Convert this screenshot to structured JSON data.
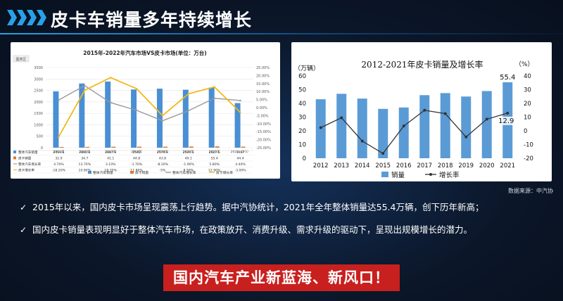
{
  "header": {
    "title": "皮卡车销量多年持续增长"
  },
  "chart_data": [
    {
      "type": "bar",
      "title": "2015年-2022年汽车市场VS皮卡市场(单位：万台)",
      "tag": "图表区",
      "categories": [
        "2015年",
        "2016年",
        "2017年",
        "2018年",
        "2019年",
        "2020年",
        "2021年",
        "2022（1-5）"
      ],
      "ylim_left": [
        0,
        3500
      ],
      "yticks_left": [
        "0",
        "500",
        "1000",
        "1500",
        "2000",
        "2500",
        "3000",
        "3500"
      ],
      "ylim_right": [
        -25,
        25
      ],
      "yticks_right": [
        "25.00%",
        "20.00%",
        "15.00%",
        "10.00%",
        "5.00%",
        "0.00%",
        "-5.00%",
        "-10.00%",
        "-15.00%",
        "-20.00%",
        "-25.00%"
      ],
      "series": [
        {
          "name": "整体汽车销量",
          "type": "bar",
          "axis": "left",
          "color": "#4a8fd4",
          "values": [
            2459.8,
            2802.8,
            2887.9,
            2542,
            2576.9,
            2531.1,
            2627.5,
            1947
          ],
          "labels": [
            "2459.8",
            "2802.8",
            "2887.9",
            "2542",
            "2576.9",
            "2531.1",
            "2627.5",
            "1947"
          ]
        },
        {
          "name": "皮卡销量",
          "type": "bar",
          "axis": "left",
          "color": "#e2762c",
          "values": [
            32.9,
            34.7,
            41.1,
            44.8,
            43.8,
            49.1,
            55.4,
            44.4
          ],
          "labels": [
            "32.9",
            "34.7",
            "41.1",
            "44.8",
            "43.8",
            "49.1",
            "55.4",
            "44.4"
          ]
        },
        {
          "name": "整体汽车增长率",
          "type": "line",
          "axis": "right",
          "color": "#9a9a9a",
          "values": [
            4.7,
            13.7,
            3.1,
            -1.7,
            -8.2,
            -1.9,
            5.8,
            4.4
          ],
          "labels": [
            "4.70%",
            "13.70%",
            "3.10%",
            "-1.70%",
            "-8.20%",
            "-1.90%",
            "5.80%",
            "4.40%"
          ]
        },
        {
          "name": "皮卡增长率",
          "type": "line",
          "axis": "right",
          "color": "#f2b81c",
          "values": [
            -18.2,
            10.8,
            18.7,
            11.8,
            -5,
            8.58,
            12.9,
            -3
          ],
          "labels": [
            "-18.20%",
            "10.80%",
            "18.70%",
            "11.80%",
            "-5%",
            "8.58%",
            "12.90%",
            "-3.00%"
          ]
        }
      ],
      "legend_position": "bottom"
    },
    {
      "type": "bar",
      "title": "2012-2021年皮卡销量及增长率",
      "ylabel_left": "（万辆）",
      "ylabel_right": "（%）",
      "categories": [
        "2012",
        "2013",
        "2014",
        "2015",
        "2016",
        "2017",
        "2018",
        "2019",
        "2020",
        "2021"
      ],
      "ylim_left": [
        0,
        60
      ],
      "yticks_left": [
        "0",
        "10",
        "20",
        "30",
        "40",
        "50",
        "60"
      ],
      "ylim_right": [
        -20,
        40
      ],
      "yticks_right": [
        "-20",
        "-10",
        "0",
        "10",
        "20",
        "30",
        "40"
      ],
      "series": [
        {
          "name": "销量",
          "type": "bar",
          "axis": "left",
          "color": "#5b9bd5",
          "values": [
            43,
            47,
            43.5,
            36,
            37,
            46,
            47.5,
            45,
            49,
            55.4
          ]
        },
        {
          "name": "增长率",
          "type": "line",
          "axis": "right",
          "color": "#333333",
          "values": [
            2.3,
            9.5,
            -7.5,
            -16.5,
            3.5,
            15,
            12.5,
            -4.5,
            8.5,
            12.9
          ]
        }
      ],
      "data_labels": [
        {
          "series": "销量",
          "index": 9,
          "text": "55.4"
        },
        {
          "series": "增长率",
          "index": 9,
          "text": "12.9"
        }
      ],
      "legend_position": "bottom"
    }
  ],
  "source_note": "数据来源：中汽协",
  "bullets": [
    "2015年以来，国内皮卡市场呈现震荡上行趋势。据中汽协统计，2021年全年整体销量达55.4万辆，创下历年新高；",
    "国内皮卡销量表现明显好于整体汽车市场，在政策放开、消费升级、需求升级的驱动下，呈现出规模增长的潜力。"
  ],
  "bullet_symbol": "✓",
  "slogan": "国内汽车产业新蓝海、新风口！"
}
